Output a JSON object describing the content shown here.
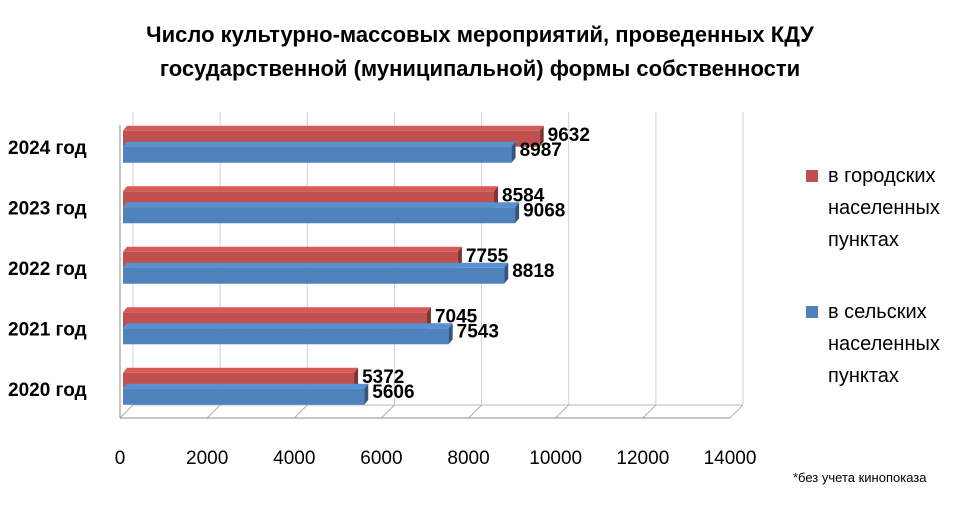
{
  "chart_data": {
    "type": "bar",
    "orientation": "horizontal",
    "title_lines": [
      "Число культурно-массовых мероприятий, проведенных КДУ",
      "государственной (муниципальной) формы собственности"
    ],
    "categories": [
      "2020 год",
      "2021 год",
      "2022 год",
      "2023 год",
      "2024 год"
    ],
    "series": [
      {
        "name": "в городских населенных пунктах",
        "name_lines": [
          "в городских",
          "населенных",
          "пунктах"
        ],
        "color": "#C0504D",
        "values": [
          5372,
          7045,
          7755,
          8584,
          9632
        ]
      },
      {
        "name": "в сельских населенных пунктах",
        "name_lines": [
          "в сельских",
          "населенных",
          "пунктах"
        ],
        "color": "#4F81BD",
        "values": [
          5606,
          7543,
          8818,
          9068,
          8987
        ]
      }
    ],
    "xlim": [
      0,
      14000
    ],
    "ticks": [
      "0",
      "2000",
      "4000",
      "6000",
      "8000",
      "10000",
      "12000",
      "14000"
    ],
    "grid": true,
    "legend_position": "right",
    "footnote": "*без учета кинопоказа"
  }
}
